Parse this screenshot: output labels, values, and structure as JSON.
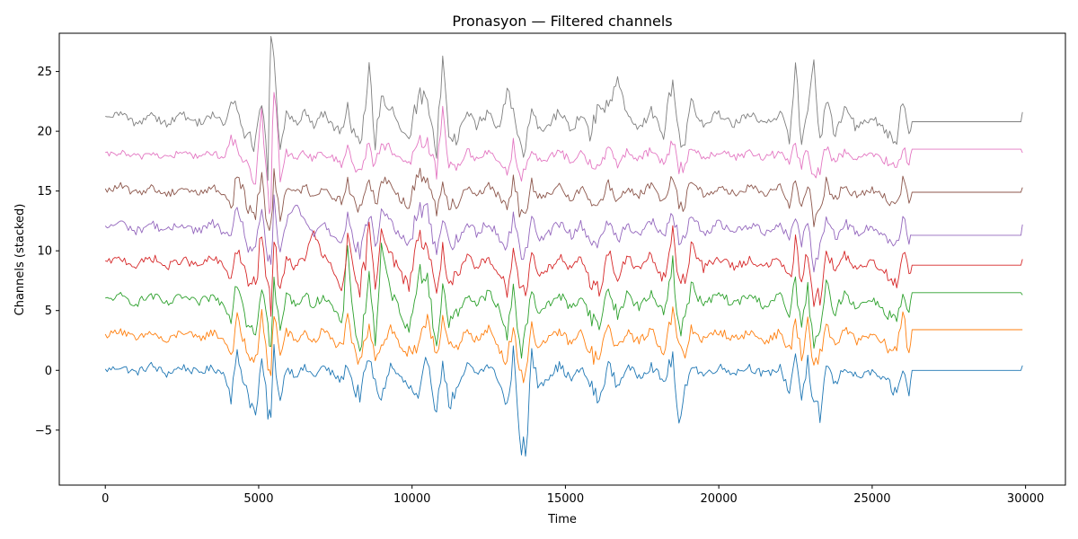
{
  "chart_data": {
    "type": "line",
    "title": "Pronasyon — Filtered channels",
    "xlabel": "Time",
    "ylabel": "Channels (stacked)",
    "xlim": [
      -1500,
      31300
    ],
    "ylim": [
      -9.6,
      28.2
    ],
    "x_ticks": [
      0,
      5000,
      10000,
      15000,
      20000,
      25000,
      30000
    ],
    "x_tick_labels": [
      "0",
      "5000",
      "10000",
      "15000",
      "20000",
      "25000",
      "30000"
    ],
    "y_ticks": [
      -5,
      0,
      5,
      10,
      15,
      20,
      25
    ],
    "y_tick_labels": [
      "−5",
      "0",
      "5",
      "10",
      "15",
      "20",
      "25"
    ],
    "grid": false,
    "legend": "none",
    "signal_x_range": [
      0,
      29900
    ],
    "signal_end": 26300,
    "x": [
      0,
      500,
      1000,
      1500,
      2000,
      2500,
      3000,
      3500,
      3900,
      4100,
      4300,
      4600,
      4900,
      5100,
      5300,
      5400,
      5500,
      5700,
      5900,
      6200,
      6500,
      6800,
      7100,
      7400,
      7700,
      7900,
      8100,
      8300,
      8600,
      8800,
      9000,
      9300,
      9600,
      9900,
      10200,
      10500,
      10800,
      11000,
      11200,
      11500,
      11800,
      12100,
      12500,
      12800,
      13100,
      13300,
      13500,
      13700,
      13900,
      14100,
      14400,
      14800,
      15200,
      15500,
      15800,
      16100,
      16400,
      16700,
      17000,
      17400,
      17800,
      18200,
      18500,
      18700,
      18900,
      19100,
      19500,
      20000,
      20500,
      21000,
      21500,
      22000,
      22300,
      22500,
      22700,
      22900,
      23100,
      23300,
      23500,
      23800,
      24100,
      24500,
      25000,
      25400,
      25800,
      26000,
      26200,
      26300,
      27000,
      28000,
      29000,
      29850,
      29900
    ],
    "series": [
      {
        "color": "#1f77b4",
        "offset": 0.0,
        "values": [
          0.0,
          0.3,
          -0.2,
          0.4,
          -0.3,
          0.3,
          -0.2,
          0.2,
          -0.3,
          -2.2,
          1.2,
          -1.5,
          -3.9,
          0.8,
          -3.0,
          -4.2,
          1.8,
          -2.6,
          0.3,
          -0.4,
          0.2,
          -0.5,
          0.3,
          -0.3,
          -0.9,
          0.6,
          -1.5,
          -2.1,
          1.1,
          -1.3,
          -2.3,
          0.4,
          -0.6,
          -1.4,
          -2.8,
          1.3,
          -3.6,
          0.9,
          -2.9,
          -1.7,
          0.5,
          -0.3,
          0.4,
          -0.6,
          -3.2,
          1.4,
          -4.4,
          -7.9,
          1.5,
          -1.2,
          -0.6,
          0.4,
          -0.8,
          0.2,
          -1.1,
          -2.7,
          0.6,
          -1.4,
          0.3,
          -0.5,
          0.4,
          -1.0,
          1.2,
          -5.2,
          -1.6,
          0.5,
          -0.4,
          0.3,
          -0.2,
          0.3,
          -0.4,
          0.2,
          -1.8,
          1.6,
          -2.4,
          0.8,
          -4.1,
          -4.2,
          0.6,
          -1.2,
          0.3,
          -0.6,
          -0.1,
          -0.9,
          -2.0,
          0.2,
          -2.1,
          0.0,
          0.0,
          0.0,
          0.0,
          0.0,
          0.4
        ]
      },
      {
        "color": "#ff7f0e",
        "offset": 2.9,
        "values": [
          0.0,
          0.5,
          -0.4,
          0.3,
          -0.6,
          0.4,
          -0.3,
          0.3,
          -0.4,
          -1.6,
          1.3,
          -1.2,
          -2.4,
          1.6,
          -2.6,
          -2.6,
          2.0,
          -1.8,
          0.4,
          -0.5,
          0.3,
          -0.6,
          0.5,
          -0.4,
          -1.0,
          1.2,
          -1.3,
          -2.3,
          1.0,
          -1.6,
          -0.9,
          0.7,
          -0.8,
          -1.6,
          -1.4,
          1.8,
          -1.5,
          1.6,
          -1.0,
          -1.2,
          0.6,
          -0.4,
          0.5,
          -0.8,
          -2.2,
          1.2,
          -3.1,
          -3.0,
          0.7,
          -0.8,
          -0.5,
          0.4,
          -0.7,
          0.3,
          -1.5,
          -2.0,
          0.9,
          -1.2,
          0.4,
          -0.6,
          0.6,
          -1.4,
          2.0,
          -1.0,
          -1.8,
          0.6,
          -0.4,
          0.4,
          -0.3,
          0.3,
          -0.5,
          0.3,
          -1.4,
          1.3,
          -2.0,
          1.0,
          -2.9,
          -1.6,
          0.9,
          -0.8,
          0.5,
          -0.5,
          0.1,
          -0.8,
          -1.3,
          2.1,
          -1.5,
          0.5,
          0.5,
          0.5,
          0.5,
          0.5,
          0.5
        ]
      },
      {
        "color": "#2ca02c",
        "offset": 5.9,
        "values": [
          0.0,
          0.3,
          -0.3,
          0.4,
          -0.4,
          0.3,
          -0.3,
          0.3,
          -0.5,
          -1.3,
          1.8,
          -1.6,
          -2.6,
          1.5,
          -2.3,
          -4.0,
          1.4,
          -2.8,
          0.5,
          -0.4,
          0.4,
          -0.5,
          0.4,
          -0.6,
          -2.2,
          3.9,
          -1.4,
          -4.5,
          2.0,
          -3.1,
          4.3,
          0.6,
          -0.7,
          -2.9,
          2.6,
          1.5,
          -3.8,
          1.0,
          -1.8,
          -1.1,
          0.5,
          -0.4,
          0.6,
          -0.7,
          -3.0,
          1.7,
          -4.4,
          -2.7,
          1.0,
          -0.9,
          -0.6,
          0.5,
          -0.8,
          0.4,
          -1.3,
          -2.3,
          1.1,
          -1.4,
          0.5,
          -0.6,
          0.4,
          -0.9,
          2.8,
          -2.3,
          -1.9,
          1.3,
          -0.5,
          0.5,
          -0.4,
          0.4,
          -0.5,
          0.4,
          -1.4,
          1.5,
          -2.2,
          0.9,
          -4.3,
          -2.7,
          1.2,
          -1.0,
          0.6,
          -0.6,
          0.1,
          -0.9,
          -1.7,
          0.3,
          -1.3,
          0.6,
          0.6,
          0.6,
          0.6,
          0.6,
          0.4
        ]
      },
      {
        "color": "#d62728",
        "offset": 9.0,
        "values": [
          0.0,
          0.4,
          -0.3,
          0.5,
          -0.4,
          0.3,
          -0.3,
          0.4,
          -0.4,
          -1.3,
          1.3,
          -1.4,
          -2.0,
          2.7,
          -2.8,
          -3.6,
          1.9,
          -2.5,
          0.6,
          -0.5,
          0.5,
          2.5,
          0.5,
          -0.5,
          -2.3,
          2.0,
          -1.2,
          -2.6,
          2.6,
          -2.0,
          3.0,
          0.8,
          -0.9,
          -1.8,
          2.4,
          1.3,
          -2.4,
          1.1,
          -1.6,
          -1.3,
          0.5,
          -0.5,
          0.5,
          -0.7,
          -2.2,
          1.3,
          -1.8,
          -2.7,
          0.9,
          -0.8,
          -0.6,
          0.5,
          -0.7,
          0.4,
          -1.4,
          -2.4,
          1.0,
          -1.5,
          0.5,
          -0.6,
          0.6,
          -1.6,
          2.4,
          -1.3,
          -1.5,
          1.7,
          -0.5,
          0.4,
          -0.4,
          0.3,
          -0.4,
          0.4,
          -1.7,
          1.6,
          -1.5,
          1.0,
          -3.5,
          -3.1,
          1.3,
          -0.9,
          0.6,
          -0.6,
          0.1,
          -0.8,
          -1.6,
          1.3,
          -1.2,
          -0.2,
          -0.2,
          -0.2,
          -0.2,
          -0.2,
          0.3
        ]
      },
      {
        "color": "#9467bd",
        "offset": 11.9,
        "values": [
          0.0,
          0.5,
          -0.3,
          0.4,
          -0.3,
          0.4,
          -0.3,
          0.4,
          -0.4,
          -1.3,
          2.2,
          -1.3,
          -2.2,
          1.6,
          -2.3,
          -3.0,
          1.9,
          -2.4,
          0.5,
          2.0,
          0.5,
          -0.4,
          0.5,
          -0.5,
          -1.0,
          1.0,
          -1.2,
          -2.1,
          1.3,
          -1.6,
          1.4,
          0.7,
          -0.7,
          -1.5,
          1.6,
          1.4,
          -2.0,
          1.0,
          -1.3,
          -1.1,
          0.4,
          -0.4,
          0.5,
          -0.6,
          -1.8,
          1.2,
          -1.7,
          -2.1,
          0.8,
          -0.7,
          -0.5,
          0.4,
          -0.6,
          0.3,
          -0.9,
          -1.4,
          0.7,
          -1.1,
          0.4,
          -0.5,
          0.6,
          -0.9,
          1.6,
          -1.2,
          -1.2,
          1.0,
          -0.4,
          0.4,
          -0.3,
          0.3,
          -0.3,
          0.4,
          -1.0,
          1.2,
          -1.5,
          0.9,
          -3.3,
          -1.6,
          0.9,
          -0.8,
          0.5,
          -0.5,
          0.2,
          -0.6,
          -1.6,
          1.1,
          -1.0,
          -0.6,
          -0.6,
          -0.6,
          -0.6,
          -0.6,
          0.3
        ]
      },
      {
        "color": "#8c564b",
        "offset": 15.0,
        "values": [
          0.0,
          0.4,
          -0.2,
          0.3,
          -0.3,
          0.3,
          -0.2,
          0.3,
          -0.3,
          -1.4,
          1.5,
          -1.1,
          -2.0,
          1.3,
          -3.1,
          -3.3,
          1.8,
          -2.2,
          0.4,
          -0.3,
          0.4,
          -0.4,
          0.3,
          -0.4,
          -0.8,
          0.9,
          -1.0,
          -1.7,
          1.1,
          -1.3,
          1.2,
          0.6,
          -0.6,
          -1.2,
          1.4,
          1.2,
          -1.8,
          0.9,
          -1.1,
          -0.9,
          0.4,
          -0.3,
          0.4,
          -0.5,
          -1.5,
          1.0,
          -1.5,
          -1.8,
          0.7,
          -0.6,
          -0.5,
          0.4,
          -0.6,
          0.3,
          -0.8,
          -1.2,
          0.6,
          -1.0,
          0.3,
          -0.4,
          0.5,
          -0.8,
          1.4,
          -1.1,
          -1.1,
          0.9,
          -0.3,
          0.3,
          -0.3,
          0.3,
          -0.3,
          0.3,
          -0.9,
          1.0,
          -1.2,
          0.8,
          -2.4,
          -1.4,
          0.8,
          -0.7,
          0.4,
          -0.4,
          0.1,
          -0.5,
          -1.2,
          1.0,
          -0.9,
          -0.1,
          -0.1,
          -0.1,
          -0.1,
          -0.1,
          0.3
        ]
      },
      {
        "color": "#e377c2",
        "offset": 18.0,
        "values": [
          0.0,
          0.2,
          -0.2,
          0.2,
          -0.2,
          0.2,
          -0.1,
          0.2,
          -0.2,
          1.2,
          0.8,
          -0.9,
          -2.5,
          3.0,
          -4.0,
          -4.0,
          6.0,
          -2.0,
          0.3,
          -0.2,
          0.3,
          -0.3,
          0.2,
          -0.3,
          -0.6,
          0.7,
          -0.8,
          -1.4,
          0.9,
          -1.1,
          1.0,
          0.5,
          -0.5,
          -1.0,
          1.2,
          1.0,
          -1.5,
          4.0,
          -1.0,
          -0.8,
          0.3,
          -0.3,
          0.3,
          -0.4,
          -1.3,
          0.9,
          -1.4,
          -1.6,
          0.6,
          -0.5,
          -0.4,
          0.3,
          -0.5,
          0.2,
          -0.7,
          -1.0,
          0.5,
          -0.8,
          0.3,
          -0.4,
          0.4,
          -0.7,
          1.2,
          -1.0,
          -1.0,
          0.8,
          -0.3,
          0.3,
          -0.2,
          0.2,
          -0.3,
          0.3,
          -0.8,
          0.9,
          -1.1,
          0.7,
          -2.2,
          -1.2,
          0.7,
          -0.6,
          0.4,
          -0.4,
          0.1,
          -0.4,
          -1.1,
          0.9,
          -0.8,
          0.5,
          0.5,
          0.5,
          0.5,
          0.5,
          0.2
        ]
      },
      {
        "color": "#7f7f7f",
        "offset": 21.0,
        "values": [
          0.0,
          0.5,
          -0.4,
          0.5,
          -0.4,
          0.4,
          -0.3,
          0.4,
          -0.5,
          1.5,
          0.9,
          -1.6,
          -2.1,
          1.9,
          -4.0,
          5.6,
          4.8,
          -2.3,
          0.6,
          -0.5,
          0.5,
          -0.6,
          0.5,
          -0.6,
          -1.2,
          1.3,
          -1.4,
          -2.0,
          4.2,
          -1.8,
          1.6,
          0.9,
          -0.9,
          -1.6,
          1.9,
          1.8,
          -2.4,
          4.8,
          -1.9,
          -1.5,
          0.6,
          -0.5,
          0.6,
          -0.8,
          2.0,
          1.5,
          -2.2,
          -2.4,
          1.0,
          -0.9,
          -0.7,
          0.6,
          -0.9,
          0.5,
          -1.3,
          1.2,
          1.0,
          3.7,
          0.5,
          -0.7,
          0.7,
          -1.3,
          3.6,
          -1.6,
          -1.7,
          1.4,
          -0.5,
          0.5,
          -0.4,
          0.4,
          -0.5,
          0.5,
          -1.4,
          4.2,
          -2.0,
          1.2,
          4.5,
          -1.8,
          1.3,
          -1.1,
          0.7,
          -0.7,
          0.2,
          -0.9,
          -1.9,
          1.5,
          -1.3,
          -0.2,
          -0.2,
          -0.2,
          -0.2,
          -0.2,
          0.6
        ]
      }
    ]
  }
}
